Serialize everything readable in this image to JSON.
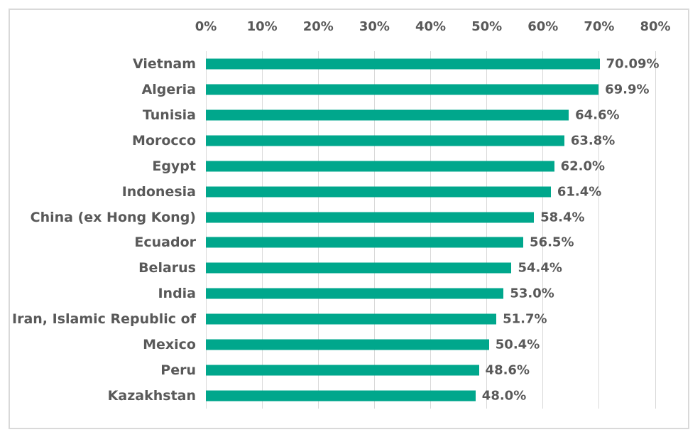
{
  "chart_data": {
    "type": "bar",
    "orientation": "horizontal",
    "title": "",
    "xlabel": "",
    "ylabel": "",
    "categories": [
      "Vietnam",
      "Algeria",
      "Tunisia",
      "Morocco",
      "Egypt",
      "Indonesia",
      "China (ex Hong Kong)",
      "Ecuador",
      "Belarus",
      "India",
      "Iran, Islamic Republic of",
      "Mexico",
      "Peru",
      "Kazakhstan"
    ],
    "values": [
      70.09,
      69.9,
      64.6,
      63.8,
      62.0,
      61.4,
      58.4,
      56.5,
      54.4,
      53.0,
      51.7,
      50.4,
      48.6,
      48.0
    ],
    "value_labels": [
      "70.09%",
      "69.9%",
      "64.6%",
      "63.8%",
      "62.0%",
      "61.4%",
      "58.4%",
      "56.5%",
      "54.4%",
      "53.0%",
      "51.7%",
      "50.4%",
      "48.6%",
      "48.0%"
    ],
    "x_ticks": [
      "0%",
      "10%",
      "20%",
      "30%",
      "40%",
      "50%",
      "60%",
      "70%",
      "80%"
    ],
    "xlim": [
      0,
      80
    ],
    "axis_position": "top",
    "grid": true,
    "legend": false,
    "bar_color": "#00A78C",
    "text_color": "#595959",
    "gridline_color": "#D9D9D9",
    "border_color": "#D9D9D9"
  }
}
